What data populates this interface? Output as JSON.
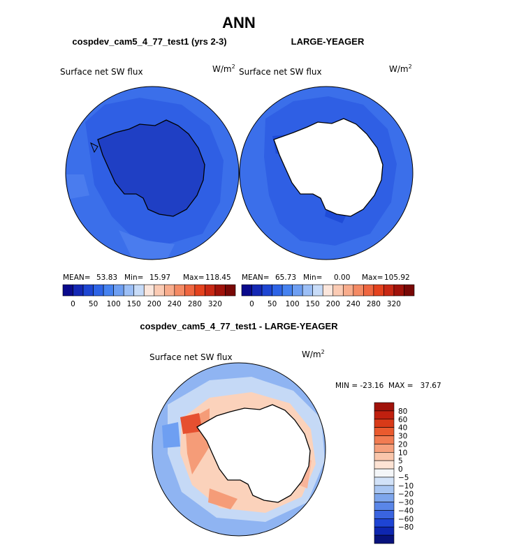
{
  "page": {
    "title": "ANN",
    "subtitle_left": "cospdev_cam5_4_77_test1 (yrs 2-3)",
    "subtitle_right": "LARGE-YEAGER",
    "diff_title": "cospdev_cam5_4_77_test1 - LARGE-YEAGER"
  },
  "panels": {
    "left": {
      "variable": "Surface net SW flux",
      "units": "W/m",
      "units_exp": "2",
      "stats": {
        "mean_label": "MEAN=",
        "mean": "53.83",
        "min_label": "Min=",
        "min": "15.97",
        "max_label": "Max=",
        "max": "118.45"
      }
    },
    "right": {
      "variable": "Surface net SW flux",
      "units": "W/m",
      "units_exp": "2",
      "stats": {
        "mean_label": "MEAN=",
        "mean": "65.73",
        "min_label": "Min=",
        "min": "0.00",
        "max_label": "Max=",
        "max": "105.92"
      }
    },
    "diff": {
      "variable": "Surface net SW flux",
      "units": "W/m",
      "units_exp": "2",
      "minmax": "MIN = -23.16  MAX =   37.67"
    }
  },
  "colorbar_h": {
    "colors": [
      "#0a0a8c",
      "#1428b4",
      "#1e46d2",
      "#2e64e6",
      "#4682f0",
      "#6e9ff2",
      "#9cbff6",
      "#c8dcf8",
      "#fbe6dc",
      "#fbcbb4",
      "#f8ac8c",
      "#f48a64",
      "#ef6640",
      "#e4421e",
      "#c82814",
      "#a0120a",
      "#780806"
    ],
    "labels": [
      "0",
      "50",
      "100",
      "150",
      "200",
      "240",
      "280",
      "320"
    ]
  },
  "colorbar_v": {
    "colors": [
      "#a0120a",
      "#c0200f",
      "#d83a18",
      "#ea5a2e",
      "#f27c52",
      "#f6a07c",
      "#f9c6ab",
      "#fde3d4",
      "#f4f6f8",
      "#d2e2f8",
      "#a9c6f2",
      "#7ea6ec",
      "#5a86e8",
      "#3a64e0",
      "#1e44d4",
      "#0e26b0",
      "#07127c"
    ],
    "labels": [
      "80",
      "60",
      "40",
      "30",
      "20",
      "10",
      "5",
      "0",
      "-5",
      "-10",
      "-20",
      "-30",
      "-40",
      "-60",
      "-80"
    ]
  }
}
